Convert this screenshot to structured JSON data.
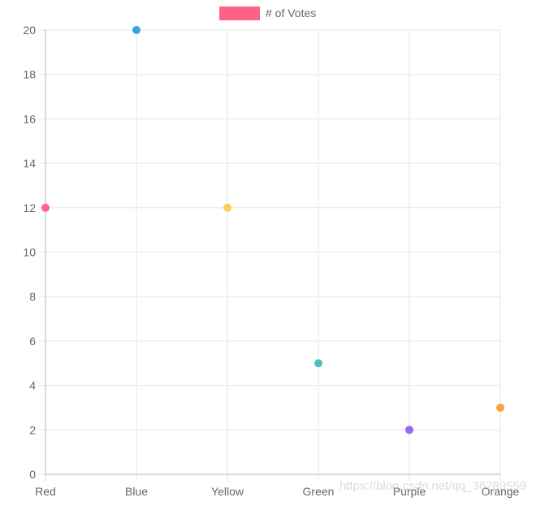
{
  "chart_data": {
    "type": "scatter",
    "legend": {
      "label": "# of Votes",
      "color": "#ff6384",
      "placement": "top"
    },
    "categories": [
      "Red",
      "Blue",
      "Yellow",
      "Green",
      "Purple",
      "Orange"
    ],
    "series": [
      {
        "name": "# of Votes",
        "values": [
          12,
          20,
          12,
          5,
          2,
          3
        ],
        "colors": [
          "#ff6384",
          "#36a2eb",
          "#ffce56",
          "#4bc0c0",
          "#9966ff",
          "#ff9f40"
        ]
      }
    ],
    "ylim": [
      0,
      20
    ],
    "yticks": [
      0,
      2,
      4,
      6,
      8,
      10,
      12,
      14,
      16,
      18,
      20
    ],
    "grid": true,
    "colors": {
      "grid": "#e6e6e6",
      "axis": "#b0b0b0",
      "tick_text": "#666666"
    }
  },
  "watermark": "https://blog.csdn.net/qq_36289559"
}
